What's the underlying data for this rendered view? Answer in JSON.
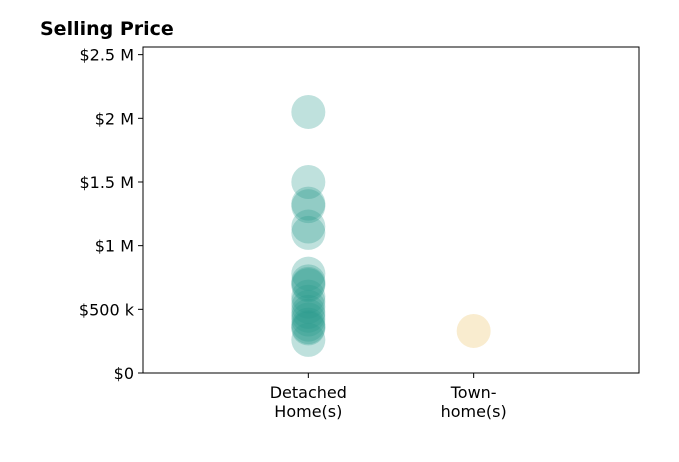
{
  "chart_data": {
    "type": "scatter",
    "title": "Selling Price",
    "xlabel": "",
    "ylabel": "",
    "categories": [
      {
        "label_lines": [
          "Detached",
          "Home(s)"
        ]
      },
      {
        "label_lines": [
          "Town-",
          "home(s)"
        ]
      }
    ],
    "yticks": [
      {
        "value": 0,
        "label": "$0"
      },
      {
        "value": 500000,
        "label": "$500 k"
      },
      {
        "value": 1000000,
        "label": "$1 M"
      },
      {
        "value": 1500000,
        "label": "$1.5 M"
      },
      {
        "value": 2000000,
        "label": "$2 M"
      },
      {
        "value": 2500000,
        "label": "$2.5 M"
      }
    ],
    "ylim": [
      0,
      2560000
    ],
    "xlim": [
      -1,
      2
    ],
    "grid": false,
    "legend": "none",
    "series": [
      {
        "category_index": 0,
        "color": "#2a9d8f",
        "values": [
          2050000,
          1500000,
          1330000,
          1310000,
          1150000,
          1100000,
          780000,
          720000,
          700000,
          690000,
          600000,
          560000,
          520000,
          480000,
          450000,
          420000,
          380000,
          360000,
          350000,
          260000
        ]
      },
      {
        "category_index": 1,
        "color": "#f4dca8",
        "values": [
          330000
        ]
      }
    ]
  }
}
